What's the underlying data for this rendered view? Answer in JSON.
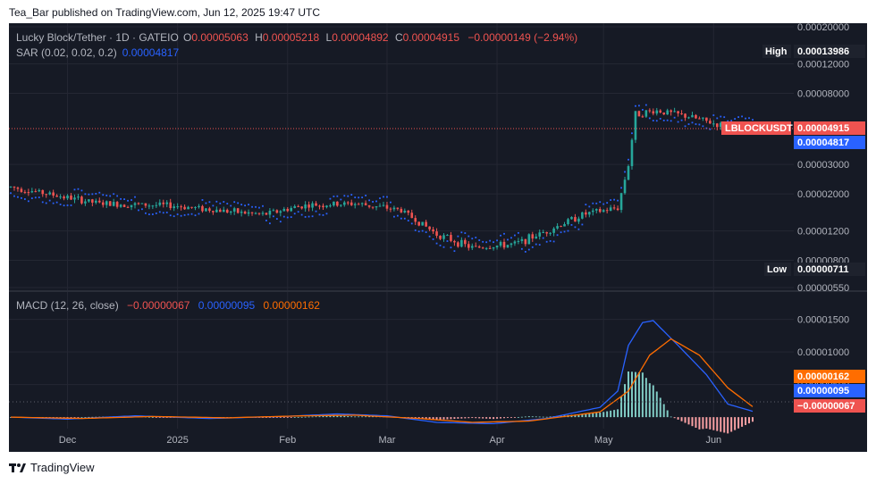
{
  "header": {
    "publisher_line": "Tea_Bar published on TradingView.com, Jun 12, 2025 19:47 UTC"
  },
  "footer": {
    "brand": "TradingView",
    "logo_icon": "tradingview-logo-icon"
  },
  "colors": {
    "background": "#161a25",
    "up": "#26a69a",
    "down": "#ef5350",
    "sar": "#2962ff",
    "macd_line": "#2962ff",
    "signal_line": "#ff6d00",
    "text": "#b2b5be",
    "grid": "#242733"
  },
  "chart_data": [
    {
      "type": "candlestick",
      "title": "Lucky Block/Tether · 1D · GATEIO",
      "ohlc_legend": {
        "o_label": "O",
        "o_value": "0.00005063",
        "h_label": "H",
        "h_value": "0.00005218",
        "l_label": "L",
        "l_value": "0.00004892",
        "c_label": "C",
        "c_value": "0.00004915",
        "change": "−0.00000149 (−2.94%)"
      },
      "sar_legend": {
        "label": "SAR (0.02, 0.02, 0.2)",
        "value": "0.00004817"
      },
      "y_scale": "log",
      "ylim": [
        5.5e-06,
        0.0002
      ],
      "y_ticks": [
        "0.00020000",
        "0.00012000",
        "0.00008000",
        "0.00003000",
        "0.00002000",
        "0.00001200",
        "0.00000800",
        "0.00000550"
      ],
      "x_ticks": [
        "Dec",
        "2025",
        "Feb",
        "Mar",
        "Apr",
        "May",
        "Jun"
      ],
      "price_labels": {
        "high_label": "High",
        "high_value": "0.00013986",
        "low_label": "Low",
        "low_value": "0.00000711",
        "symbol": "LBLOCKUSDT",
        "last_value": "0.00004915",
        "sar_value": "0.00004817"
      },
      "last_price": 4.915e-05,
      "segments": [
        [
          "2024-11-15",
          2.2e-05
        ],
        [
          "2024-12-10",
          1.75e-05
        ],
        [
          "2024-12-31",
          1.7e-05
        ],
        [
          "2025-01-25",
          1.5e-05
        ],
        [
          "2025-02-05",
          1.7e-05
        ],
        [
          "2025-02-20",
          1.75e-05
        ],
        [
          "2025-03-05",
          1.6e-05
        ],
        [
          "2025-03-15",
          1.15e-05
        ],
        [
          "2025-03-25",
          9.5e-06
        ],
        [
          "2025-04-06",
          1e-05
        ],
        [
          "2025-04-15",
          1.2e-05
        ],
        [
          "2025-04-25",
          1.5e-05
        ],
        [
          "2025-05-05",
          1.65e-05
        ],
        [
          "2025-05-08",
          3e-05
        ],
        [
          "2025-05-10",
          6e-05
        ],
        [
          "2025-05-16",
          6.3e-05
        ],
        [
          "2025-05-25",
          5.8e-05
        ],
        [
          "2025-06-05",
          5e-05
        ],
        [
          "2025-06-12",
          4.92e-05
        ]
      ],
      "x_range": [
        "2024-11-15",
        "2025-06-12"
      ]
    },
    {
      "type": "macd",
      "title": "MACD (12, 26, close)",
      "legend_values": [
        "−0.00000067",
        "0.00000095",
        "0.00000162"
      ],
      "y_ticks": [
        "0.00001500",
        "0.00001000",
        "0.00000500"
      ],
      "ylim": [
        -4.5e-06,
        1.85e-05
      ],
      "last_labels": {
        "signal": "0.00000162",
        "macd": "0.00000095",
        "histogram": "−0.00000067"
      },
      "macd_points": [
        [
          "2024-11-15",
          0.0
        ],
        [
          "2024-12-01",
          -3e-07
        ],
        [
          "2024-12-20",
          2e-07
        ],
        [
          "2025-01-10",
          -2e-07
        ],
        [
          "2025-01-31",
          1e-07
        ],
        [
          "2025-02-15",
          5e-07
        ],
        [
          "2025-03-01",
          2e-07
        ],
        [
          "2025-03-15",
          -8e-07
        ],
        [
          "2025-03-31",
          -1e-06
        ],
        [
          "2025-04-15",
          -2e-07
        ],
        [
          "2025-04-30",
          1.5e-06
        ],
        [
          "2025-05-05",
          4e-06
        ],
        [
          "2025-05-08",
          1.1e-05
        ],
        [
          "2025-05-12",
          1.45e-05
        ],
        [
          "2025-05-15",
          1.48e-05
        ],
        [
          "2025-05-22",
          1.1e-05
        ],
        [
          "2025-05-30",
          6.5e-06
        ],
        [
          "2025-06-05",
          2e-06
        ],
        [
          "2025-06-12",
          9e-07
        ]
      ],
      "signal_points": [
        [
          "2024-11-15",
          0.0
        ],
        [
          "2024-12-05",
          -2e-07
        ],
        [
          "2024-12-25",
          1e-07
        ],
        [
          "2025-01-15",
          -1e-07
        ],
        [
          "2025-02-05",
          2e-07
        ],
        [
          "2025-02-20",
          3e-07
        ],
        [
          "2025-03-10",
          -2e-07
        ],
        [
          "2025-03-25",
          -8e-07
        ],
        [
          "2025-04-10",
          -6e-07
        ],
        [
          "2025-04-30",
          8e-07
        ],
        [
          "2025-05-08",
          4e-06
        ],
        [
          "2025-05-14",
          9.5e-06
        ],
        [
          "2025-05-20",
          1.2e-05
        ],
        [
          "2025-05-28",
          9.5e-06
        ],
        [
          "2025-06-05",
          4.5e-06
        ],
        [
          "2025-06-12",
          1.6e-06
        ]
      ]
    }
  ]
}
